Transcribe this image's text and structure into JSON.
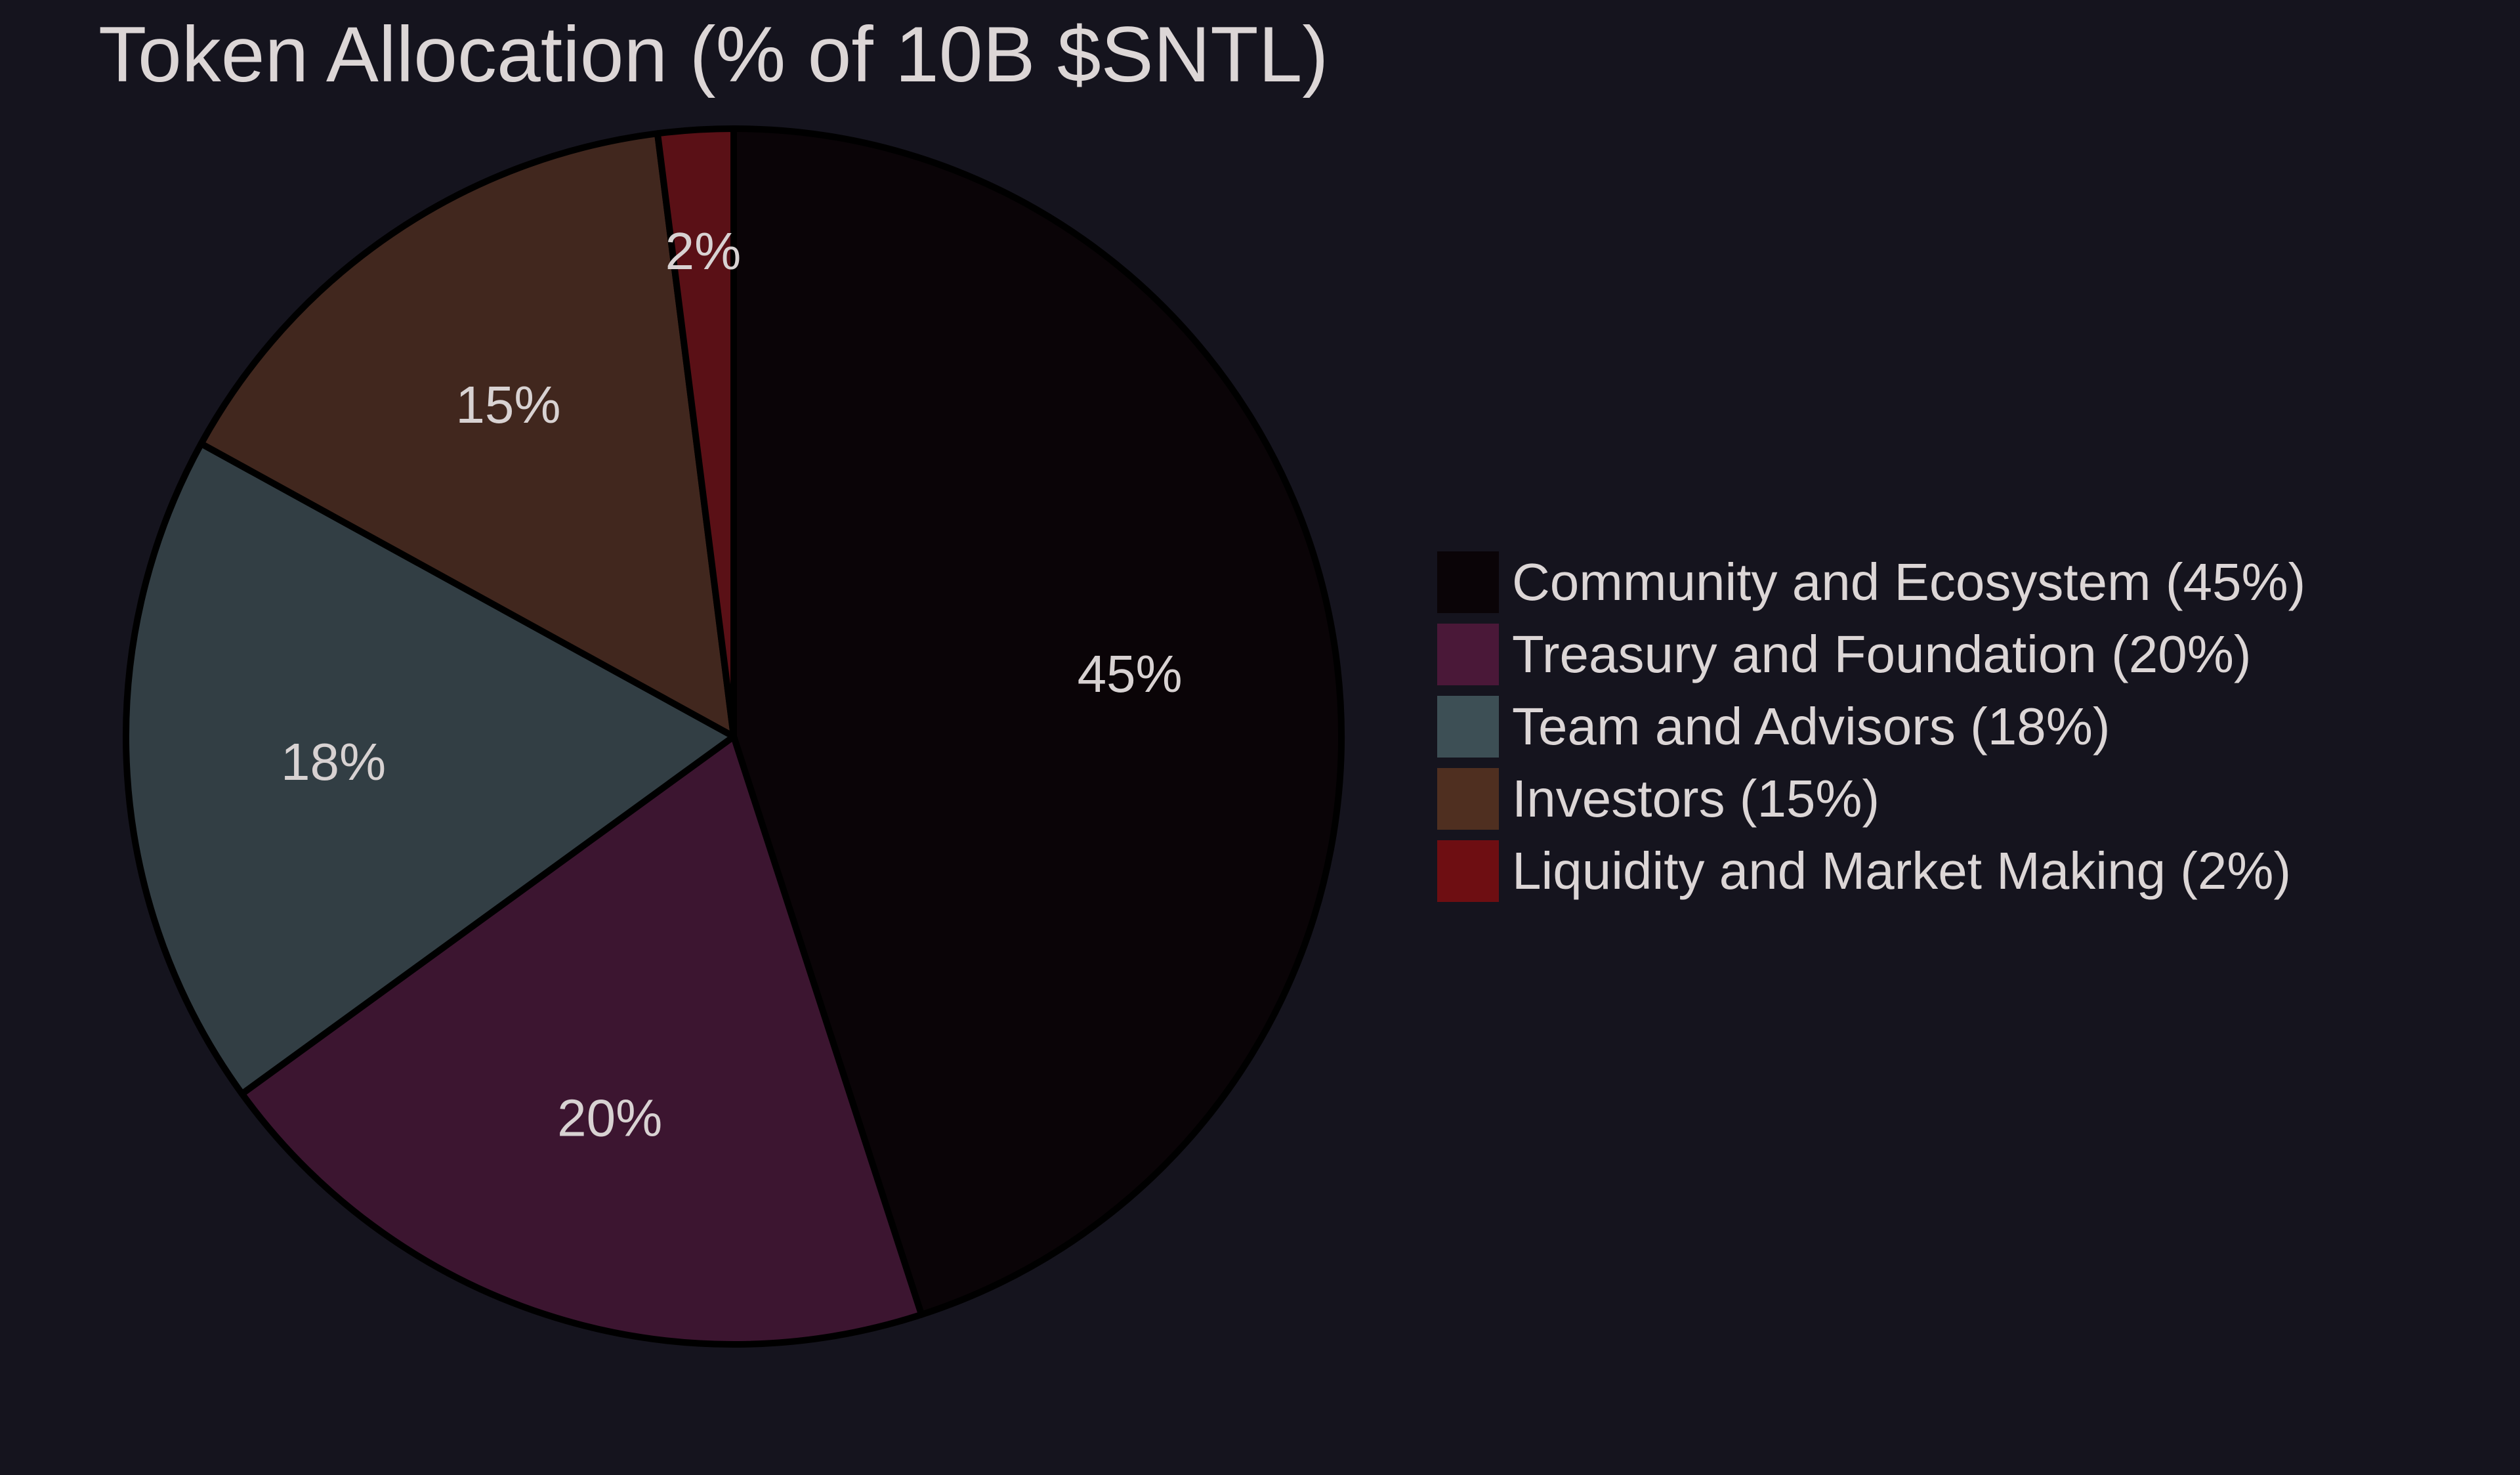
{
  "chart_data": {
    "type": "pie",
    "title": "Token Allocation (% of 10B $SNTL)",
    "categories": [
      "Community and Ecosystem (45%)",
      "Treasury and Foundation (20%)",
      "Team and Advisors (18%)",
      "Investors (15%)",
      "Liquidity and Market Making (2%)"
    ],
    "values": [
      45,
      20,
      18,
      15,
      2
    ],
    "slice_labels": [
      "45%",
      "20%",
      "18%",
      "15%",
      "2%"
    ],
    "colors": [
      "#0a0407",
      "#3c1530",
      "#323e44",
      "#41271e",
      "#5a1016"
    ],
    "legend_colors": [
      "#0a0407",
      "#4a1838",
      "#3d4f55",
      "#4f2f20",
      "#6e0e12"
    ],
    "start_angle": "top, clockwise",
    "legend_position": "right"
  }
}
